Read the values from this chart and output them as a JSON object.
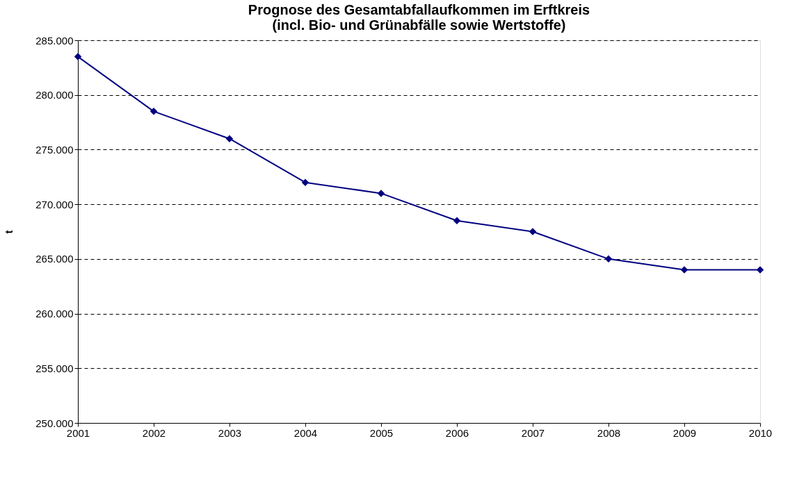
{
  "chart_data": {
    "type": "line",
    "title": "Prognose des Gesamtabfallaufkommen im Erftkreis\n(incl. Bio- und Grünabfälle sowie Wertstoffe)",
    "ylabel": "t",
    "x": [
      2001,
      2002,
      2003,
      2004,
      2005,
      2006,
      2007,
      2008,
      2009,
      2010
    ],
    "series": [
      {
        "color": "#000080",
        "values": [
          283500,
          278500,
          276000,
          272000,
          271000,
          268500,
          267500,
          265000,
          264000,
          264000
        ]
      }
    ],
    "xlim": [
      2001,
      2010
    ],
    "xticks": [
      2001,
      2002,
      2003,
      2004,
      2005,
      2006,
      2007,
      2008,
      2009,
      2010
    ],
    "ylim": [
      250000,
      285000
    ],
    "yticks": [
      {
        "value": 250000,
        "label": "250.000"
      },
      {
        "value": 255000,
        "label": "255.000"
      },
      {
        "value": 260000,
        "label": "260.000"
      },
      {
        "value": 265000,
        "label": "265.000"
      },
      {
        "value": 270000,
        "label": "270.000"
      },
      {
        "value": 275000,
        "label": "275.000"
      },
      {
        "value": 280000,
        "label": "280.000"
      },
      {
        "value": 285000,
        "label": "285.000"
      }
    ],
    "grid": "y",
    "marker": "diamond",
    "line_style": "solid"
  }
}
